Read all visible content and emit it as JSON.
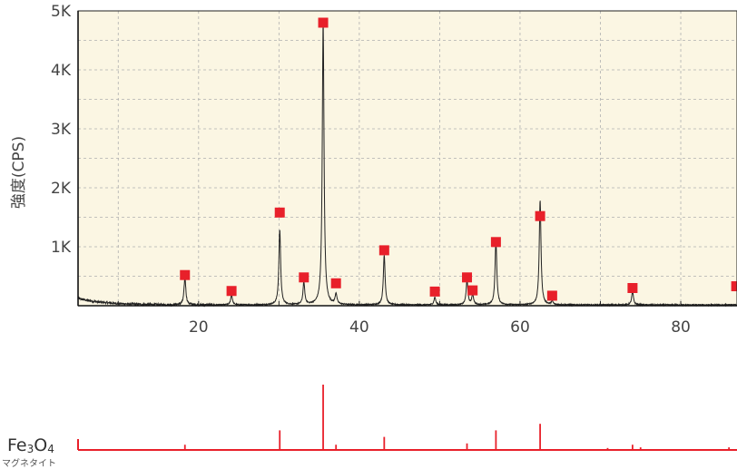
{
  "chart_data": {
    "type": "line",
    "ylabel": "強度(CPS)",
    "xlim": [
      5,
      87
    ],
    "ylim": [
      0,
      5000
    ],
    "x_ticks": [
      20,
      40,
      60,
      80
    ],
    "y_ticks": [
      {
        "value": 1000,
        "label": "1K"
      },
      {
        "value": 2000,
        "label": "2K"
      },
      {
        "value": 3000,
        "label": "3K"
      },
      {
        "value": 4000,
        "label": "4K"
      },
      {
        "value": 5000,
        "label": "5K"
      }
    ],
    "grid": true,
    "colors": {
      "plot_bg": "#fbf6e3",
      "trace": "#222222",
      "marker": "#e8202a",
      "reference": "#e8202a"
    },
    "peaks": [
      {
        "x": 18.3,
        "y": 470
      },
      {
        "x": 24.1,
        "y": 170
      },
      {
        "x": 30.1,
        "y": 1280
      },
      {
        "x": 33.1,
        "y": 380
      },
      {
        "x": 35.5,
        "y": 4780
      },
      {
        "x": 37.1,
        "y": 180
      },
      {
        "x": 43.1,
        "y": 850
      },
      {
        "x": 49.4,
        "y": 130
      },
      {
        "x": 53.4,
        "y": 420
      },
      {
        "x": 54.1,
        "y": 180
      },
      {
        "x": 57.0,
        "y": 1100
      },
      {
        "x": 62.5,
        "y": 1780
      },
      {
        "x": 64.0,
        "y": 60
      },
      {
        "x": 74.0,
        "y": 230
      }
    ],
    "markers": [
      {
        "x": 18.3,
        "y": 520
      },
      {
        "x": 24.1,
        "y": 250
      },
      {
        "x": 30.1,
        "y": 1580
      },
      {
        "x": 33.1,
        "y": 480
      },
      {
        "x": 35.5,
        "y": 4800
      },
      {
        "x": 37.1,
        "y": 380
      },
      {
        "x": 43.1,
        "y": 940
      },
      {
        "x": 49.4,
        "y": 240
      },
      {
        "x": 53.4,
        "y": 480
      },
      {
        "x": 54.1,
        "y": 260
      },
      {
        "x": 57.0,
        "y": 1080
      },
      {
        "x": 62.5,
        "y": 1520
      },
      {
        "x": 64.0,
        "y": 170
      },
      {
        "x": 74.0,
        "y": 300
      },
      {
        "x": 86.9,
        "y": 330
      }
    ],
    "reference": {
      "name_prefix": "Fe",
      "name_sub1": "3",
      "name_mid": "O",
      "name_sub2": "4",
      "subtitle": "マグネタイト",
      "sticks": [
        {
          "x": 18.3,
          "rel": 8
        },
        {
          "x": 30.1,
          "rel": 30
        },
        {
          "x": 35.5,
          "rel": 100
        },
        {
          "x": 37.1,
          "rel": 8
        },
        {
          "x": 43.1,
          "rel": 20
        },
        {
          "x": 53.4,
          "rel": 10
        },
        {
          "x": 57.0,
          "rel": 30
        },
        {
          "x": 62.5,
          "rel": 40
        },
        {
          "x": 70.9,
          "rel": 3
        },
        {
          "x": 74.0,
          "rel": 8
        },
        {
          "x": 75.0,
          "rel": 4
        },
        {
          "x": 86.0,
          "rel": 4
        }
      ]
    }
  }
}
